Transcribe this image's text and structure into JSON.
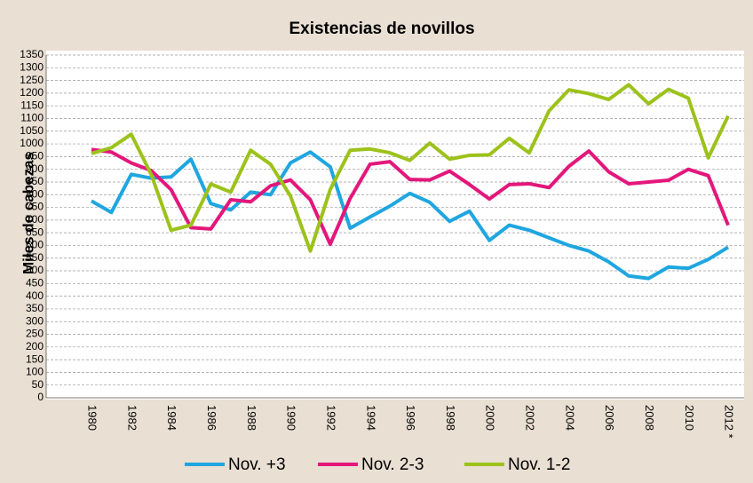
{
  "chart_data": {
    "type": "line",
    "title": "Existencias de novillos",
    "y_label": "Miles de cabezas",
    "categories": [
      "1980",
      null,
      "1982",
      null,
      "1984",
      null,
      "1986",
      null,
      "1988",
      null,
      "1990",
      null,
      "1992",
      null,
      "1994",
      null,
      "1996",
      null,
      "1998",
      null,
      "2000",
      null,
      "2002",
      null,
      "2004",
      null,
      "2006",
      null,
      "2008",
      null,
      "2010",
      null,
      "2012 *"
    ],
    "series": [
      {
        "name": "Nov. +3",
        "color": "#1fa6e0",
        "values": [
          775,
          730,
          880,
          865,
          870,
          940,
          765,
          740,
          810,
          800,
          925,
          968,
          910,
          668,
          712,
          755,
          805,
          770,
          695,
          735,
          620,
          680,
          660,
          630,
          600,
          578,
          535,
          480,
          470,
          515,
          510,
          545,
          593
        ]
      },
      {
        "name": "Nov. 2-3",
        "color": "#e3177b",
        "values": [
          978,
          968,
          925,
          895,
          820,
          670,
          665,
          780,
          772,
          835,
          858,
          780,
          605,
          785,
          920,
          930,
          860,
          858,
          893,
          840,
          783,
          840,
          843,
          828,
          912,
          972,
          890,
          843,
          850,
          857,
          900,
          875,
          680
        ]
      },
      {
        "name": "Nov. 1-2",
        "color": "#9cc21b",
        "values": [
          962,
          985,
          1038,
          880,
          660,
          680,
          842,
          810,
          975,
          920,
          795,
          578,
          820,
          975,
          980,
          965,
          935,
          1003,
          940,
          955,
          957,
          1022,
          965,
          1130,
          1213,
          1198,
          1175,
          1233,
          1158,
          1215,
          1180,
          945,
          1110
        ]
      }
    ],
    "ylim": [
      0,
      1350
    ],
    "yticks": [
      0,
      50,
      100,
      150,
      200,
      250,
      300,
      350,
      400,
      450,
      500,
      550,
      600,
      650,
      700,
      750,
      800,
      850,
      900,
      950,
      1000,
      1050,
      1100,
      1150,
      1200,
      1250,
      1300,
      1350
    ],
    "grid": true,
    "legend": "bottom"
  }
}
